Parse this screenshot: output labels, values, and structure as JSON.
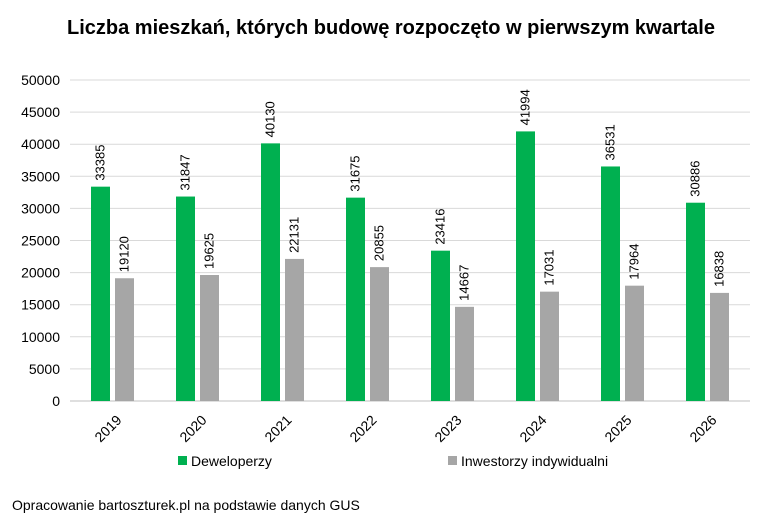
{
  "chart_data": {
    "type": "bar",
    "title": "Liczba mieszkań, których budowę rozpoczęto w pierwszym kwartale",
    "categories": [
      "2019",
      "2020",
      "2021",
      "2022",
      "2023",
      "2024",
      "2025",
      "2026"
    ],
    "series": [
      {
        "name": "Deweloperzy",
        "color": "#00b050",
        "values": [
          33385,
          31847,
          40130,
          31675,
          23416,
          41994,
          36531,
          30886
        ]
      },
      {
        "name": "Inwestorzy indywidualni",
        "color": "#a6a6a6",
        "values": [
          19120,
          19625,
          22131,
          20855,
          14667,
          17031,
          17964,
          16838
        ]
      }
    ],
    "ylim": [
      0,
      50000
    ],
    "yticks": [
      "0",
      "5000",
      "10000",
      "15000",
      "20000",
      "25000",
      "30000",
      "35000",
      "40000",
      "45000",
      "50000"
    ],
    "grid": true,
    "legend_position": "bottom",
    "data_labels": true
  },
  "source": "Opracowanie bartoszturek.pl na podstawie danych GUS"
}
